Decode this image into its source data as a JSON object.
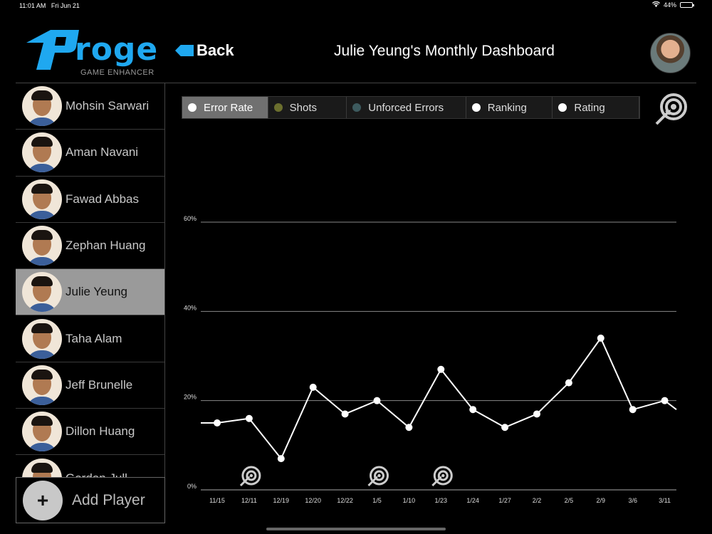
{
  "status": {
    "time": "11:01 AM",
    "date": "Fri Jun 21",
    "battery": "44%",
    "battery_level": 0.44
  },
  "brand": {
    "name": "roge",
    "tagline": "GAME ENHANCER",
    "color": "#1fa8f0"
  },
  "header": {
    "back_label": "Back",
    "title": "Julie Yeung's Monthly Dashboard"
  },
  "players": [
    {
      "name": "Mohsin Sarwari",
      "active": false
    },
    {
      "name": "Aman Navani",
      "active": false
    },
    {
      "name": "Fawad Abbas",
      "active": false
    },
    {
      "name": "Zephan Huang",
      "active": false
    },
    {
      "name": "Julie Yeung",
      "active": true
    },
    {
      "name": "Taha Alam",
      "active": false
    },
    {
      "name": "Jeff Brunelle",
      "active": false
    },
    {
      "name": "Dillon Huang",
      "active": false
    },
    {
      "name": "Gordon Jull",
      "active": false
    }
  ],
  "add_player_label": "Add Player",
  "tabs": [
    {
      "label": "Error  Rate",
      "dot_color": "#ffffff",
      "active": true
    },
    {
      "label": "Shots",
      "dot_color": "#6b6f2e",
      "active": false
    },
    {
      "label": "Unforced Errors",
      "dot_color": "#3d5a5e",
      "active": false
    },
    {
      "label": "Ranking",
      "dot_color": "#ffffff",
      "active": false
    },
    {
      "label": "Rating",
      "dot_color": "#ffffff",
      "active": false
    }
  ],
  "chart_data": {
    "type": "line",
    "title": "",
    "x": [
      "11/15",
      "12/11",
      "12/19",
      "12/20",
      "12/22",
      "1/5",
      "1/10",
      "1/23",
      "1/24",
      "1/27",
      "2/2",
      "2/5",
      "2/9",
      "3/6",
      "3/11"
    ],
    "series": [
      {
        "values": [
          15,
          16,
          7,
          23,
          17,
          20,
          14,
          27,
          18,
          14,
          17,
          24,
          34,
          18,
          20
        ]
      }
    ],
    "y_ticks": [
      "0%",
      "20%",
      "40%",
      "60%"
    ],
    "ylim": [
      0,
      60
    ],
    "grid": true,
    "target_markers_at": [
      "12/11",
      "1/5",
      "1/23"
    ],
    "line_color": "#ffffff"
  }
}
